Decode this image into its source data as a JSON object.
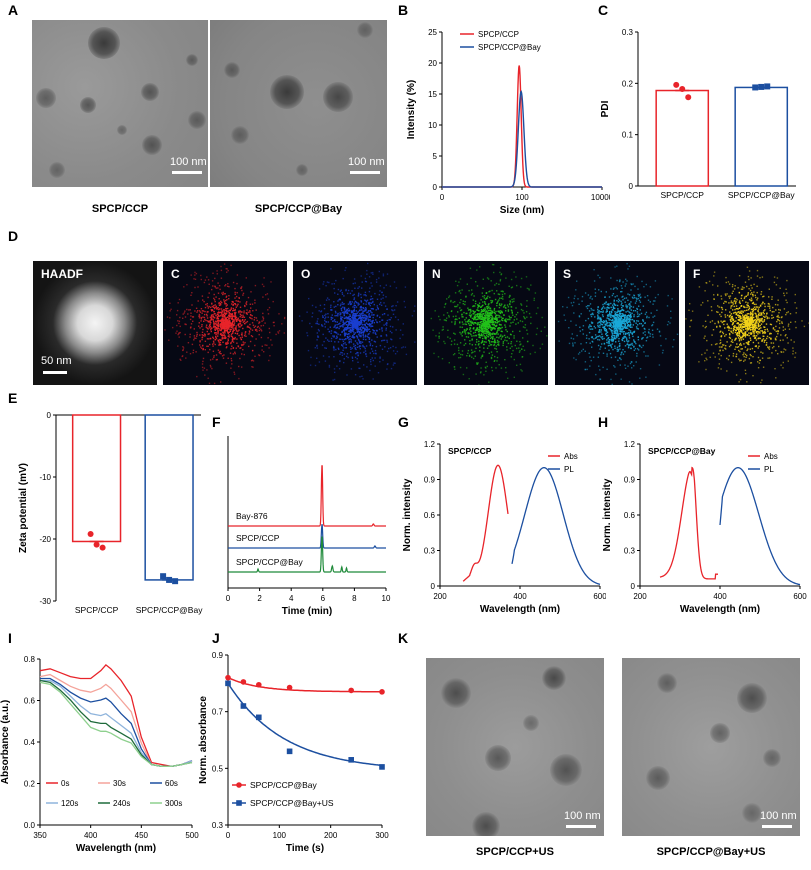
{
  "panels": {
    "A": "A",
    "B": "B",
    "C": "C",
    "D": "D",
    "E": "E",
    "F": "F",
    "G": "G",
    "H": "H",
    "I": "I",
    "J": "J",
    "K": "K"
  },
  "A": {
    "scalebar_left": "100 nm",
    "scalebar_right": "100 nm",
    "caption_left": "SPCP/CCP",
    "caption_right": "SPCP/CCP@Bay"
  },
  "D": {
    "labels": [
      "HAADF",
      "C",
      "O",
      "N",
      "S",
      "F"
    ],
    "scalebar": "50 nm",
    "colors": [
      "#e0e0e0",
      "#e8242a",
      "#1a3fd0",
      "#22c21a",
      "#1aa8d8",
      "#f2d21a"
    ]
  },
  "K": {
    "scalebar_left": "100 nm",
    "scalebar_right": "100 nm",
    "caption_left": "SPCP/CCP+US",
    "caption_right": "SPCP/CCP@Bay+US"
  },
  "chart_data": [
    {
      "id": "B",
      "type": "line",
      "xlabel": "Size (nm)",
      "ylabel": "Intensity (%)",
      "xscale": "log",
      "xlim": [
        1,
        10000
      ],
      "ylim": [
        0,
        25
      ],
      "xticks": [
        "0",
        "100",
        "10000"
      ],
      "yticks": [
        "0",
        "5",
        "10",
        "15",
        "20",
        "25"
      ],
      "legend": "top-left",
      "series": [
        {
          "name": "SPCP/CCP",
          "color": "#e8242a",
          "peak_x": 85,
          "peak_y": 19.6
        },
        {
          "name": "SPCP/CCP@Bay",
          "color": "#1c4fa0",
          "peak_x": 95,
          "peak_y": 15.4
        }
      ]
    },
    {
      "id": "C",
      "type": "bar",
      "ylabel": "PDI",
      "ylim": [
        0,
        0.3
      ],
      "yticks": [
        "0",
        "0.1",
        "0.2",
        "0.3"
      ],
      "categories": [
        "SPCP/CCP",
        "SPCP/CCP@Bay"
      ],
      "values": [
        0.186,
        0.192
      ],
      "colors": [
        "#e8242a",
        "#1c4fa0"
      ],
      "points": [
        [
          0.197,
          0.189,
          0.173
        ],
        [
          0.192,
          0.193,
          0.194
        ]
      ]
    },
    {
      "id": "E",
      "type": "bar",
      "ylabel": "Zeta potential (mV)",
      "ylim": [
        -30,
        0
      ],
      "yticks": [
        "0",
        "-10",
        "-20",
        "-30"
      ],
      "categories": [
        "SPCP/CCP",
        "SPCP/CCP@Bay"
      ],
      "values": [
        -20.4,
        -26.6
      ],
      "colors": [
        "#e8242a",
        "#1c4fa0"
      ],
      "points": [
        [
          -19.2,
          -20.9,
          -21.4
        ],
        [
          -26.0,
          -26.6,
          -26.8
        ]
      ]
    },
    {
      "id": "F",
      "type": "line",
      "xlabel": "Time (min)",
      "xlim": [
        0,
        10
      ],
      "xticks": [
        "0",
        "2",
        "4",
        "6",
        "8",
        "10"
      ],
      "series": [
        {
          "name": "Bay-876",
          "color": "#e8242a",
          "peak_x": 5.95
        },
        {
          "name": "SPCP/CCP",
          "color": "#1c4fa0",
          "peak_x": 5.95
        },
        {
          "name": "SPCP/CCP@Bay",
          "color": "#1f8a3a",
          "peak_x": 5.95
        }
      ]
    },
    {
      "id": "G",
      "type": "line",
      "title": "SPCP/CCP",
      "xlabel": "Wavelength (nm)",
      "ylabel": "Norm. intensity",
      "xlim": [
        200,
        600
      ],
      "ylim": [
        0,
        1.2
      ],
      "xticks": [
        "200",
        "400",
        "600"
      ],
      "yticks": [
        "0",
        "0.3",
        "0.6",
        "0.9",
        "1.2"
      ],
      "legend": "top-right",
      "series": [
        {
          "name": "Abs",
          "color": "#e8242a",
          "peak_x": 345,
          "peak_y": 0.98
        },
        {
          "name": "PL",
          "color": "#1c4fa0",
          "peak_x": 460,
          "peak_y": 1.0
        }
      ]
    },
    {
      "id": "H",
      "type": "line",
      "title": "SPCP/CCP@Bay",
      "xlabel": "Wavelength (nm)",
      "ylabel": "Norm. intensity",
      "xlim": [
        200,
        600
      ],
      "ylim": [
        0,
        1.2
      ],
      "xticks": [
        "200",
        "400",
        "600"
      ],
      "yticks": [
        "0",
        "0.3",
        "0.6",
        "0.9",
        "1.2"
      ],
      "legend": "top-right",
      "series": [
        {
          "name": "Abs",
          "color": "#e8242a",
          "peak_x": 330,
          "peak_y": 1.0
        },
        {
          "name": "PL",
          "color": "#1c4fa0",
          "peak_x": 445,
          "peak_y": 1.0
        }
      ]
    },
    {
      "id": "I",
      "type": "line",
      "xlabel": "Wavelength (nm)",
      "ylabel": "Absorbance (a.u.)",
      "xlim": [
        350,
        500
      ],
      "ylim": [
        0,
        0.8
      ],
      "xticks": [
        "350",
        "400",
        "450",
        "500"
      ],
      "yticks": [
        "0.0",
        "0.2",
        "0.4",
        "0.6",
        "0.8"
      ],
      "legend": "bottom",
      "x": [
        350,
        360,
        370,
        380,
        390,
        400,
        410,
        415,
        420,
        430,
        440,
        450,
        460,
        470,
        480,
        490,
        500
      ],
      "series": [
        {
          "name": "0s",
          "color": "#e8242a",
          "values": [
            0.79,
            0.8,
            0.78,
            0.76,
            0.75,
            0.75,
            0.79,
            0.82,
            0.8,
            0.74,
            0.66,
            0.45,
            0.32,
            0.31,
            0.3,
            0.31,
            0.33
          ]
        },
        {
          "name": "30s",
          "color": "#f4a39a",
          "values": [
            0.76,
            0.77,
            0.74,
            0.71,
            0.69,
            0.68,
            0.7,
            0.72,
            0.7,
            0.64,
            0.58,
            0.42,
            0.31,
            0.3,
            0.3,
            0.31,
            0.33
          ]
        },
        {
          "name": "60s",
          "color": "#1c4fa0",
          "values": [
            0.75,
            0.75,
            0.72,
            0.68,
            0.65,
            0.63,
            0.64,
            0.65,
            0.63,
            0.57,
            0.52,
            0.39,
            0.31,
            0.3,
            0.3,
            0.31,
            0.33
          ]
        },
        {
          "name": "120s",
          "color": "#8fb4dc",
          "values": [
            0.74,
            0.74,
            0.71,
            0.66,
            0.61,
            0.57,
            0.56,
            0.57,
            0.55,
            0.51,
            0.47,
            0.37,
            0.31,
            0.3,
            0.3,
            0.31,
            0.33
          ]
        },
        {
          "name": "240s",
          "color": "#1e6a3a",
          "values": [
            0.74,
            0.73,
            0.69,
            0.64,
            0.58,
            0.53,
            0.52,
            0.52,
            0.5,
            0.47,
            0.44,
            0.36,
            0.31,
            0.3,
            0.3,
            0.31,
            0.32
          ]
        },
        {
          "name": "300s",
          "color": "#8ed08e",
          "values": [
            0.73,
            0.72,
            0.68,
            0.62,
            0.56,
            0.5,
            0.48,
            0.48,
            0.47,
            0.44,
            0.42,
            0.35,
            0.31,
            0.3,
            0.3,
            0.31,
            0.32
          ]
        }
      ]
    },
    {
      "id": "J",
      "type": "scatter",
      "xlabel": "Time (s)",
      "ylabel": "Norm. absorbance",
      "xlim": [
        0,
        300
      ],
      "ylim": [
        0.3,
        0.9
      ],
      "xticks": [
        "0",
        "100",
        "200",
        "300"
      ],
      "yticks": [
        "0.3",
        "0.5",
        "0.7",
        "0.9"
      ],
      "legend": "bottom-left",
      "series": [
        {
          "name": "SPCP/CCP@Bay",
          "color": "#e8242a",
          "marker": "circle",
          "x": [
            0,
            30,
            60,
            120,
            240,
            300
          ],
          "values": [
            0.82,
            0.805,
            0.795,
            0.785,
            0.775,
            0.77
          ]
        },
        {
          "name": "SPCP/CCP@Bay+US",
          "color": "#1c4fa0",
          "marker": "square",
          "x": [
            0,
            30,
            60,
            120,
            240,
            300
          ],
          "values": [
            0.8,
            0.72,
            0.68,
            0.56,
            0.53,
            0.505
          ]
        }
      ]
    }
  ]
}
